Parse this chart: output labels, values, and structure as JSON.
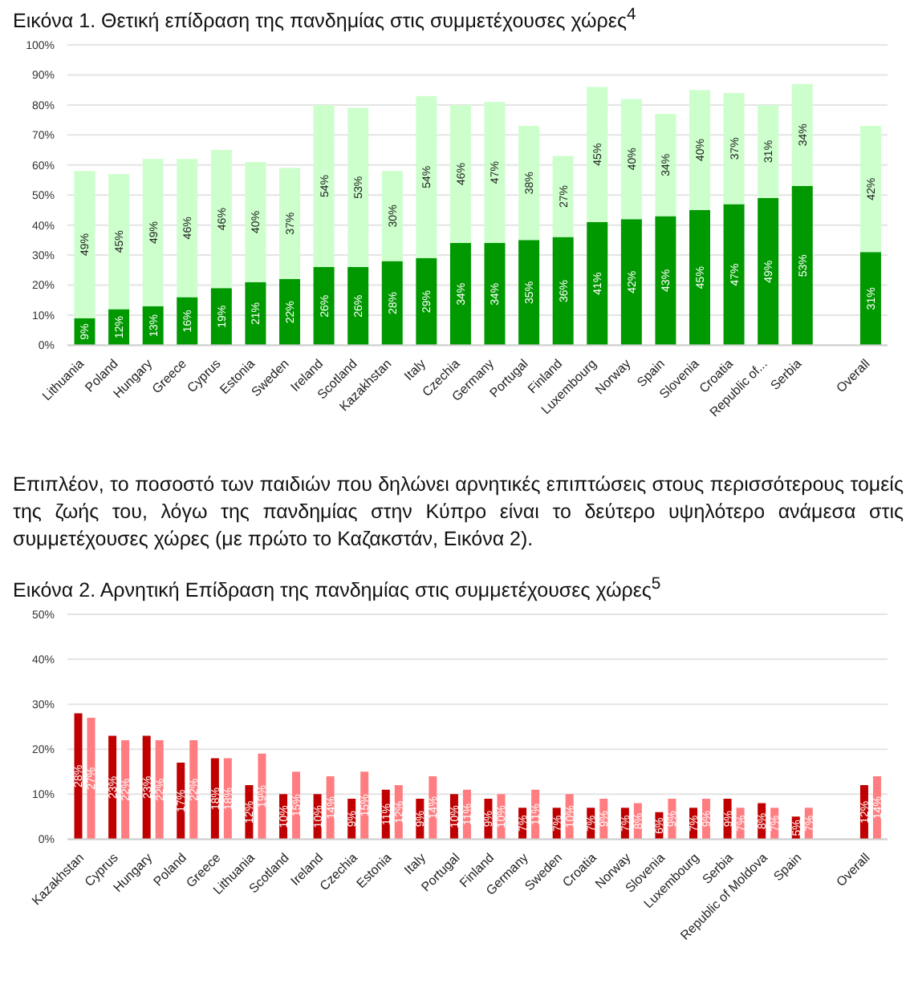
{
  "chart_data": [
    {
      "type": "bar",
      "title": "Εικόνα 1. Θετική επίδραση της πανδημίας στις συμμετέχουσες χώρες$^{4}$",
      "stacked": true,
      "grid": "y",
      "categories": [
        "Lithuania",
        "Poland",
        "Hungary",
        "Greece",
        "Cyprus",
        "Estonia",
        "Sweden",
        "Ireland",
        "Scotland",
        "Kazakhstan",
        "Italy",
        "Czechia",
        "Germany",
        "Portugal",
        "Finland",
        "Luxembourg",
        "Norway",
        "Spain",
        "Slovenia",
        "Croatia",
        "Republic of...",
        "Serbia",
        null,
        "Overall"
      ],
      "series": [
        {
          "color": "#009900",
          "values": [
            9,
            12,
            13,
            16,
            19,
            21,
            22,
            26,
            26,
            28,
            29,
            34,
            34,
            35,
            36,
            41,
            42,
            43,
            45,
            47,
            49,
            53,
            null,
            31
          ],
          "value_labels": [
            "9%",
            "12%",
            "13%",
            "16%",
            "19%",
            "21%",
            "22%",
            "26%",
            "26%",
            "28%",
            "29%",
            "34%",
            "34%",
            "35%",
            "36%",
            "41%",
            "42%",
            "43%",
            "45%",
            "47%",
            "49%",
            "53%",
            null,
            "31%"
          ]
        },
        {
          "color": "#ccffcc",
          "values": [
            49,
            45,
            49,
            46,
            46,
            40,
            37,
            54,
            53,
            30,
            54,
            46,
            47,
            38,
            27,
            45,
            40,
            34,
            40,
            37,
            31,
            34,
            null,
            42
          ],
          "value_labels": [
            "49%",
            "45%",
            "49%",
            "46%",
            "46%",
            "40%",
            "37%",
            "54%",
            "53%",
            "30%",
            "54%",
            "46%",
            "47%",
            "38%",
            "27%",
            "45%",
            "40%",
            "34%",
            "40%",
            "37%",
            "31%",
            "34%",
            null,
            "42%"
          ]
        }
      ],
      "ylim": [
        0,
        100
      ],
      "yticks": [
        {
          "value": 0,
          "label": "0%"
        },
        {
          "value": 10,
          "label": "10%"
        },
        {
          "value": 20,
          "label": "20%"
        },
        {
          "value": 30,
          "label": "30%"
        },
        {
          "value": 40,
          "label": "40%"
        },
        {
          "value": 50,
          "label": "50%"
        },
        {
          "value": 60,
          "label": "60%"
        },
        {
          "value": 70,
          "label": "70%"
        },
        {
          "value": 80,
          "label": "80%"
        },
        {
          "value": 90,
          "label": "90%"
        },
        {
          "value": 100,
          "label": "100%"
        }
      ],
      "annotations": [
        "Επιπλέον, το ποσοστό των παιδιών που δηλώνει αρνητικές επιπτώσεις στους περισσότερους τομείς της ζωής του, λόγω της πανδημίας στην Κύπρο είναι το δεύτερο υψηλότερο ανάμεσα στις συμμετέχουσες χώρες (με πρώτο το Καζακστάν, Εικόνα 2)."
      ]
    },
    {
      "type": "bar",
      "title": "Εικόνα 2. Αρνητική Επίδραση της πανδημίας στις συμμετέχουσες χώρες$^{5}$",
      "grid": "y",
      "categories": [
        "Kazakhstan",
        "Cyprus",
        "Hungary",
        "Poland",
        "Greece",
        "Lithuania",
        "Scotland",
        "Ireland",
        "Czechia",
        "Estonia",
        "Italy",
        "Portugal",
        "Finland",
        "Germany",
        "Sweden",
        "Croatia",
        "Norway",
        "Slovenia",
        "Luxembourg",
        "Serbia",
        "Republic of Moldova",
        "Spain",
        null,
        "Overall"
      ],
      "series": [
        {
          "color": "#c00000",
          "values": [
            28,
            23,
            23,
            17,
            18,
            12,
            10,
            10,
            9,
            11,
            9,
            10,
            9,
            7,
            7,
            7,
            7,
            6,
            7,
            9,
            8,
            5,
            null,
            12
          ],
          "value_labels": [
            "28%",
            "23%",
            "23%",
            "17%",
            "18%",
            "12%",
            "10%",
            "10%",
            "9%",
            "11%",
            "9%",
            "10%",
            "9%",
            "7%",
            "7%",
            "7%",
            "7%",
            "6%",
            "7%",
            "9%",
            "8%",
            "5%",
            null,
            "12%"
          ]
        },
        {
          "color": "#ff7c80",
          "values": [
            27,
            22,
            22,
            22,
            18,
            19,
            15,
            14,
            15,
            12,
            14,
            11,
            10,
            11,
            10,
            9,
            8,
            9,
            9,
            7,
            7,
            7,
            null,
            14
          ],
          "value_labels": [
            "27%",
            "22%",
            "22%",
            "22%",
            "18%",
            "19%",
            "15%",
            "14%",
            "15%",
            "12%",
            "14%",
            "11%",
            "10%",
            "11%",
            "10%",
            "9%",
            "8%",
            "9%",
            "9%",
            "7%",
            "7%",
            "7%",
            null,
            "14%"
          ]
        }
      ],
      "ylim": [
        0,
        50
      ],
      "yticks": [
        {
          "value": 0,
          "label": "0%"
        },
        {
          "value": 10,
          "label": "10%"
        },
        {
          "value": 20,
          "label": "20%"
        },
        {
          "value": 30,
          "label": "30%"
        },
        {
          "value": 40,
          "label": "40%"
        },
        {
          "value": 50,
          "label": "50%"
        }
      ]
    }
  ]
}
